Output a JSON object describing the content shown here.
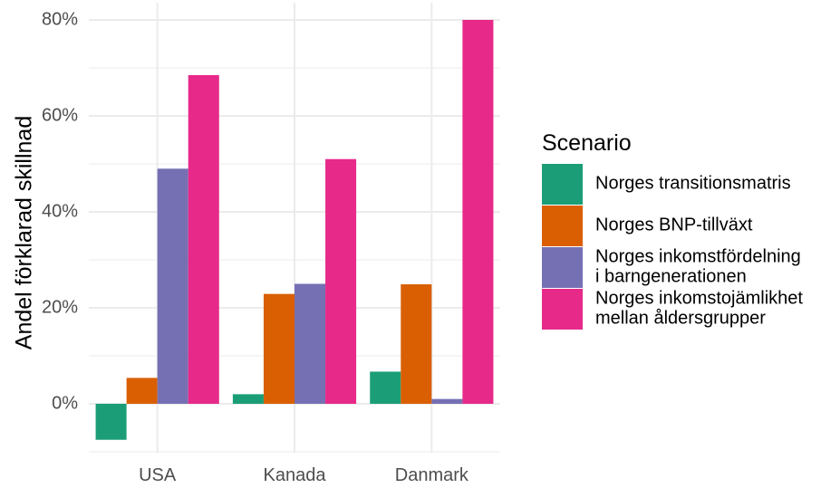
{
  "chart_data": {
    "type": "bar",
    "title": "",
    "xlabel": "",
    "ylabel": "Andel förklarad skillnad",
    "ylim": [
      -0.1,
      0.8
    ],
    "y_ticks": [
      0,
      0.2,
      0.4,
      0.6,
      0.8
    ],
    "y_tick_labels": [
      "0%",
      "20%",
      "40%",
      "60%",
      "80%"
    ],
    "grid": true,
    "legend_position": "right",
    "categories": [
      "USA",
      "Kanada",
      "Danmark"
    ],
    "series": [
      {
        "name": "Norges transitionsmatris",
        "name_lines": [
          "Norges transitionsmatris"
        ],
        "color": "#1b9e77",
        "values": [
          -0.075,
          0.02,
          0.067
        ]
      },
      {
        "name": "Norges BNP-tillväxt",
        "name_lines": [
          "Norges BNP-tillväxt"
        ],
        "color": "#d95f02",
        "values": [
          0.054,
          0.229,
          0.249
        ]
      },
      {
        "name": "Norges inkomstfördelning i barngenerationen",
        "name_lines": [
          "Norges inkomstfördelning",
          "i barngenerationen"
        ],
        "color": "#7570b3",
        "values": [
          0.49,
          0.25,
          0.01
        ]
      },
      {
        "name": "Norges inkomstojämlikhet mellan åldersgrupper",
        "name_lines": [
          "Norges inkomstojämlikhet",
          "mellan åldersgrupper"
        ],
        "color": "#e7298a",
        "values": [
          0.685,
          0.51,
          0.8
        ]
      }
    ]
  },
  "legend": {
    "title": "Scenario"
  }
}
